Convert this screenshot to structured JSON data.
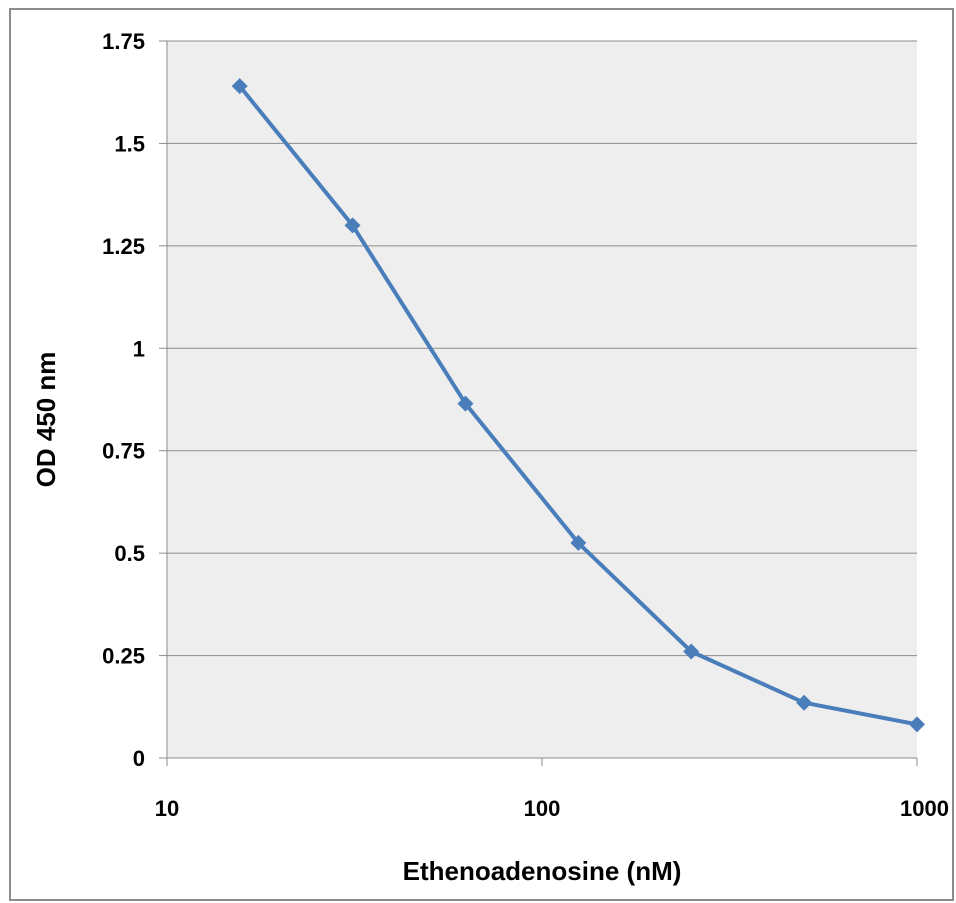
{
  "chart_data": {
    "type": "line",
    "xlabel": "Ethenoadenosine (nM)",
    "ylabel": "OD 450 nm",
    "x_scale": "log",
    "xlim": [
      10,
      1000
    ],
    "ylim": [
      0,
      1.75
    ],
    "x_ticks": [
      "10",
      "100",
      "1000"
    ],
    "y_ticks": [
      "0",
      "0.25",
      "0.5",
      "0.75",
      "1",
      "1.25",
      "1.5",
      "1.75"
    ],
    "grid": "horizontal",
    "legend": "none",
    "series": [
      {
        "x": [
          15.625,
          31.25,
          62.5,
          125,
          250,
          500,
          1000
        ],
        "y": [
          1.64,
          1.3,
          0.865,
          0.525,
          0.26,
          0.135,
          0.082
        ]
      }
    ],
    "colors": {
      "series": "#4a7ebb",
      "plot_background": "#eeeeee",
      "gridline": "#8c8c8c"
    }
  }
}
